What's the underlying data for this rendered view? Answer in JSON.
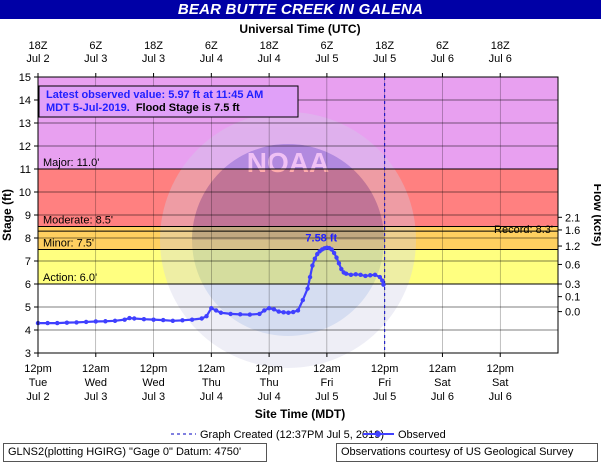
{
  "header": {
    "title": "BEAR BUTTE CREEK IN GALENA"
  },
  "top_axis": {
    "title": "Universal Time (UTC)",
    "ticks": [
      {
        "hour": "18Z",
        "date": "Jul  2"
      },
      {
        "hour": "6Z",
        "date": "Jul  3"
      },
      {
        "hour": "18Z",
        "date": "Jul  3"
      },
      {
        "hour": "6Z",
        "date": "Jul  4"
      },
      {
        "hour": "18Z",
        "date": "Jul  4"
      },
      {
        "hour": "6Z",
        "date": "Jul  5"
      },
      {
        "hour": "18Z",
        "date": "Jul  5"
      },
      {
        "hour": "6Z",
        "date": "Jul  6"
      },
      {
        "hour": "18Z",
        "date": "Jul  6"
      }
    ]
  },
  "info_box": {
    "line1": "Latest observed value: 5.97 ft at 11:45 AM",
    "line2a": "MDT 5-Jul-2019.",
    "line2b": "Flood Stage is 7.5 ft"
  },
  "footer": {
    "left": "GLNS2(plotting HGIRG) \"Gage 0\" Datum: 4750'",
    "right": "Observations courtesy of US Geological Survey"
  },
  "colors": {
    "major": "#e8a0f0",
    "moderate": "#ff8080",
    "minor": "#ffff80",
    "action": "#ffff80",
    "observed_line": "#4040ff",
    "forecast_line": "#0000c0",
    "title_bg": "#0000a6"
  },
  "chart_data": {
    "type": "line",
    "title": "BEAR BUTTE CREEK IN GALENA",
    "xlabel": "Site Time (MDT)",
    "ylabel": "Stage (ft)",
    "y2label": "Flow (kcfs)",
    "x_unit": "hours since 12pm Tue Jul 2 (MDT)",
    "xlim": [
      0,
      108
    ],
    "ylim": [
      3,
      15
    ],
    "y_ticks": [
      3,
      4,
      5,
      6,
      7,
      8,
      9,
      10,
      11,
      12,
      13,
      14,
      15
    ],
    "x_ticks": [
      {
        "x": 0,
        "time": "12pm",
        "day": "Tue",
        "date": "Jul 2"
      },
      {
        "x": 12,
        "time": "12am",
        "day": "Wed",
        "date": "Jul 3"
      },
      {
        "x": 24,
        "time": "12pm",
        "day": "Wed",
        "date": "Jul 3"
      },
      {
        "x": 36,
        "time": "12am",
        "day": "Thu",
        "date": "Jul 4"
      },
      {
        "x": 48,
        "time": "12pm",
        "day": "Thu",
        "date": "Jul 4"
      },
      {
        "x": 60,
        "time": "12am",
        "day": "Fri",
        "date": "Jul 5"
      },
      {
        "x": 72,
        "time": "12pm",
        "day": "Fri",
        "date": "Jul 5"
      },
      {
        "x": 84,
        "time": "12am",
        "day": "Sat",
        "date": "Jul 6"
      },
      {
        "x": 96,
        "time": "12pm",
        "day": "Sat",
        "date": "Jul 6"
      }
    ],
    "flow_ticks": [
      {
        "stage": 4.8,
        "label": "0.0"
      },
      {
        "stage": 5.45,
        "label": "0.1"
      },
      {
        "stage": 6.0,
        "label": "0.3"
      },
      {
        "stage": 6.85,
        "label": "0.6"
      },
      {
        "stage": 7.65,
        "label": "1.2"
      },
      {
        "stage": 8.35,
        "label": "1.6"
      },
      {
        "stage": 8.9,
        "label": "2.1"
      }
    ],
    "flood_categories": [
      {
        "name": "Major",
        "label": "Major: 11.0'",
        "value": 11.0,
        "color": "#e8a0f0"
      },
      {
        "name": "Moderate",
        "label": "Moderate: 8.5'",
        "value": 8.5,
        "color": "#ff8080"
      },
      {
        "name": "Minor",
        "label": "Minor: 7.5'",
        "value": 7.5,
        "color": "#ffff80"
      },
      {
        "name": "Action",
        "label": "Action: 6.0'",
        "value": 6.0,
        "color": "#ffff80"
      }
    ],
    "record": {
      "label": "Record: 8.3'",
      "value": 8.3
    },
    "graph_created": {
      "x": 72,
      "label": "Graph Created (12:37PM Jul 5, 2019)"
    },
    "peak": {
      "x": 60.5,
      "y": 7.58,
      "label": "7.58 ft"
    },
    "legend": {
      "observed": "Observed"
    },
    "series": [
      {
        "name": "Observed",
        "x": [
          0,
          2,
          4,
          6,
          8,
          10,
          12,
          14,
          16,
          18,
          19,
          20,
          22,
          24,
          26,
          28,
          30,
          32,
          34,
          35,
          36,
          37,
          38,
          40,
          42,
          44,
          46,
          47,
          48,
          49,
          50,
          51,
          52,
          53,
          54,
          55,
          56,
          56.5,
          57,
          57.5,
          58,
          58.5,
          59,
          59.5,
          60,
          60.5,
          61,
          61.5,
          62,
          62.5,
          63,
          63.5,
          64,
          65,
          66,
          67,
          68,
          69,
          70,
          71,
          71.5,
          71.75
        ],
        "values": [
          4.3,
          4.3,
          4.3,
          4.32,
          4.33,
          4.35,
          4.37,
          4.38,
          4.4,
          4.45,
          4.52,
          4.5,
          4.47,
          4.45,
          4.43,
          4.4,
          4.42,
          4.45,
          4.5,
          4.6,
          4.95,
          4.85,
          4.75,
          4.7,
          4.68,
          4.67,
          4.7,
          4.85,
          4.95,
          4.9,
          4.8,
          4.77,
          4.75,
          4.78,
          4.85,
          5.3,
          5.8,
          6.3,
          6.8,
          7.1,
          7.3,
          7.42,
          7.5,
          7.55,
          7.58,
          7.56,
          7.5,
          7.35,
          7.15,
          6.9,
          6.65,
          6.5,
          6.45,
          6.4,
          6.42,
          6.4,
          6.35,
          6.38,
          6.4,
          6.3,
          6.15,
          5.97
        ]
      }
    ]
  }
}
